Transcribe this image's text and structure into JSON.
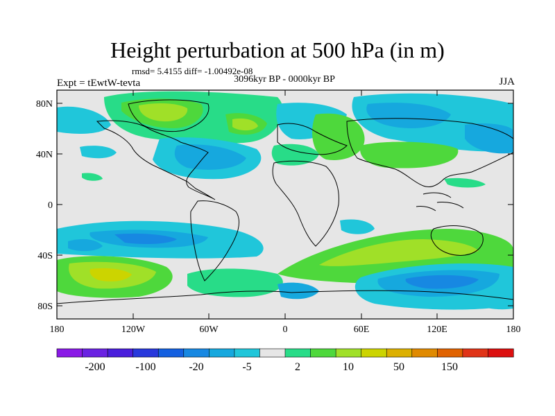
{
  "title": "Height perturbation at 500 hPa (in m)",
  "stats": "rmsd= 5.4155  diff= -1.00492e-08",
  "period": "3096kyr BP - 0000kyr BP",
  "experiment": "Expt = tEwtW-tevta",
  "season": "JJA",
  "lat_ticks": [
    "80N",
    "40N",
    "0",
    "40S",
    "80S"
  ],
  "lon_ticks": [
    "180",
    "120W",
    "60W",
    "0",
    "60E",
    "120E",
    "180"
  ],
  "colorbar": {
    "colors": [
      "#8a1ae6",
      "#6a22e2",
      "#4a1edc",
      "#2838dc",
      "#1460e0",
      "#1788e2",
      "#16a8de",
      "#20c6da",
      "#e6e6e6",
      "#28dc88",
      "#4ed83c",
      "#a0e028",
      "#ccd400",
      "#dcb000",
      "#e08a00",
      "#e06200",
      "#e03418",
      "#dc1010"
    ],
    "labels": [
      "-200",
      "-100",
      "-20",
      "-5",
      "2",
      "10",
      "50",
      "150"
    ]
  }
}
